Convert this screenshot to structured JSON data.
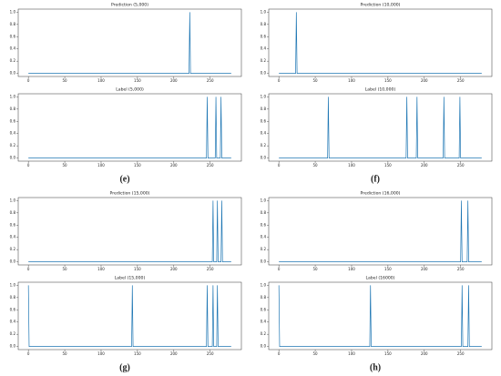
{
  "chart_data": [
    {
      "type": "line",
      "title": "Prediction (5,000)",
      "color": "#1f77b4",
      "x": [
        0,
        221,
        222,
        223,
        279
      ],
      "values": [
        0,
        0,
        1,
        0,
        0
      ],
      "xlim": [
        -14,
        293
      ],
      "ylim": [
        -0.05,
        1.05
      ],
      "xticks": [
        0,
        50,
        100,
        150,
        200,
        250
      ],
      "yticks": [
        {
          "value": 0,
          "label": "0.0"
        },
        {
          "value": 0.2,
          "label": "0.2"
        },
        {
          "value": 0.4,
          "label": "0.4"
        },
        {
          "value": 0.6,
          "label": "0.6"
        },
        {
          "value": 0.8,
          "label": "0.8"
        },
        {
          "value": 1,
          "label": "1.0"
        }
      ]
    },
    {
      "type": "line",
      "title": "Prediction (10,000)",
      "color": "#1f77b4",
      "x": [
        0,
        23,
        24,
        25,
        279
      ],
      "values": [
        0,
        0,
        1,
        0,
        0
      ],
      "xlim": [
        -14,
        293
      ],
      "ylim": [
        -0.05,
        1.05
      ],
      "xticks": [
        0,
        50,
        100,
        150,
        200,
        250
      ],
      "yticks": [
        {
          "value": 0,
          "label": "0.0"
        },
        {
          "value": 0.2,
          "label": "0.2"
        },
        {
          "value": 0.4,
          "label": "0.4"
        },
        {
          "value": 0.6,
          "label": "0.6"
        },
        {
          "value": 0.8,
          "label": "0.8"
        },
        {
          "value": 1,
          "label": "1.0"
        }
      ]
    },
    {
      "type": "line",
      "title": "Label (5,000)",
      "color": "#1f77b4",
      "x": [
        0,
        245,
        246,
        247,
        257,
        258,
        259,
        264,
        265,
        266,
        279
      ],
      "values": [
        0,
        0,
        1,
        0,
        0,
        1,
        0,
        0,
        1,
        0,
        0
      ],
      "xlim": [
        -14,
        293
      ],
      "ylim": [
        -0.05,
        1.05
      ],
      "xticks": [
        0,
        50,
        100,
        150,
        200,
        250
      ],
      "yticks": [
        {
          "value": 0,
          "label": "0.0"
        },
        {
          "value": 0.2,
          "label": "0.2"
        },
        {
          "value": 0.4,
          "label": "0.4"
        },
        {
          "value": 0.6,
          "label": "0.6"
        },
        {
          "value": 0.8,
          "label": "0.8"
        },
        {
          "value": 1,
          "label": "1.0"
        }
      ]
    },
    {
      "type": "line",
      "title": "Label (10,000)",
      "color": "#1f77b4",
      "x": [
        0,
        67,
        68,
        69,
        175,
        176,
        177,
        189,
        190,
        191,
        226,
        227,
        228,
        248,
        249,
        250,
        279
      ],
      "values": [
        0,
        0,
        1,
        0,
        0,
        1,
        0,
        0,
        1,
        0,
        0,
        1,
        0,
        0,
        1,
        0,
        0
      ],
      "xlim": [
        -14,
        293
      ],
      "ylim": [
        -0.05,
        1.05
      ],
      "xticks": [
        0,
        50,
        100,
        150,
        200,
        250
      ],
      "yticks": [
        {
          "value": 0,
          "label": "0.0"
        },
        {
          "value": 0.2,
          "label": "0.2"
        },
        {
          "value": 0.4,
          "label": "0.4"
        },
        {
          "value": 0.6,
          "label": "0.6"
        },
        {
          "value": 0.8,
          "label": "0.8"
        },
        {
          "value": 1,
          "label": "1.0"
        }
      ]
    },
    {
      "type": "line",
      "title": "Prediction (15,000)",
      "color": "#1f77b4",
      "x": [
        0,
        253,
        254,
        255,
        259,
        260,
        261,
        265,
        266,
        267,
        279
      ],
      "values": [
        0,
        0,
        1,
        0,
        0,
        1,
        0,
        0,
        1,
        0,
        0
      ],
      "xlim": [
        -14,
        293
      ],
      "ylim": [
        -0.05,
        1.05
      ],
      "xticks": [
        0,
        50,
        100,
        150,
        200,
        250
      ],
      "yticks": [
        {
          "value": 0,
          "label": "0.0"
        },
        {
          "value": 0.2,
          "label": "0.2"
        },
        {
          "value": 0.4,
          "label": "0.4"
        },
        {
          "value": 0.6,
          "label": "0.6"
        },
        {
          "value": 0.8,
          "label": "0.8"
        },
        {
          "value": 1,
          "label": "1.0"
        }
      ]
    },
    {
      "type": "line",
      "title": "Prediction (16,000)",
      "color": "#1f77b4",
      "x": [
        0,
        250,
        251,
        252,
        259,
        260,
        261,
        279
      ],
      "values": [
        0,
        0,
        1,
        0,
        0,
        1,
        0,
        0
      ],
      "xlim": [
        -14,
        293
      ],
      "ylim": [
        -0.05,
        1.05
      ],
      "xticks": [
        0,
        50,
        100,
        150,
        200,
        250
      ],
      "yticks": [
        {
          "value": 0,
          "label": "0.0"
        },
        {
          "value": 0.2,
          "label": "0.2"
        },
        {
          "value": 0.4,
          "label": "0.4"
        },
        {
          "value": 0.6,
          "label": "0.6"
        },
        {
          "value": 0.8,
          "label": "0.8"
        },
        {
          "value": 1,
          "label": "1.0"
        }
      ]
    },
    {
      "type": "line",
      "title": "Label (15,000)",
      "color": "#1f77b4",
      "x": [
        0,
        1,
        142,
        143,
        144,
        245,
        246,
        247,
        253,
        254,
        255,
        259,
        260,
        261,
        279
      ],
      "values": [
        1,
        0,
        0,
        1,
        0,
        0,
        1,
        0,
        0,
        1,
        0,
        0,
        1,
        0,
        0
      ],
      "xlim": [
        -14,
        293
      ],
      "ylim": [
        -0.05,
        1.05
      ],
      "xticks": [
        0,
        50,
        100,
        150,
        200,
        250
      ],
      "yticks": [
        {
          "value": 0,
          "label": "0.0"
        },
        {
          "value": 0.2,
          "label": "0.2"
        },
        {
          "value": 0.4,
          "label": "0.4"
        },
        {
          "value": 0.6,
          "label": "0.6"
        },
        {
          "value": 0.8,
          "label": "0.8"
        },
        {
          "value": 1,
          "label": "1.0"
        }
      ]
    },
    {
      "type": "line",
      "title": "Label (16000)",
      "color": "#1f77b4",
      "x": [
        0,
        1,
        125,
        126,
        127,
        251,
        252,
        253,
        260,
        261,
        262,
        279
      ],
      "values": [
        1,
        0,
        0,
        1,
        0,
        0,
        1,
        0,
        0,
        1,
        0,
        0
      ],
      "xlim": [
        -14,
        293
      ],
      "ylim": [
        -0.05,
        1.05
      ],
      "xticks": [
        0,
        50,
        100,
        150,
        200,
        250
      ],
      "yticks": [
        {
          "value": 0,
          "label": "0.0"
        },
        {
          "value": 0.2,
          "label": "0.2"
        },
        {
          "value": 0.4,
          "label": "0.4"
        },
        {
          "value": 0.6,
          "label": "0.6"
        },
        {
          "value": 0.8,
          "label": "0.8"
        },
        {
          "value": 1,
          "label": "1.0"
        }
      ]
    }
  ],
  "captions": [
    "(e)",
    "(f)",
    "(g)",
    "(h)"
  ]
}
